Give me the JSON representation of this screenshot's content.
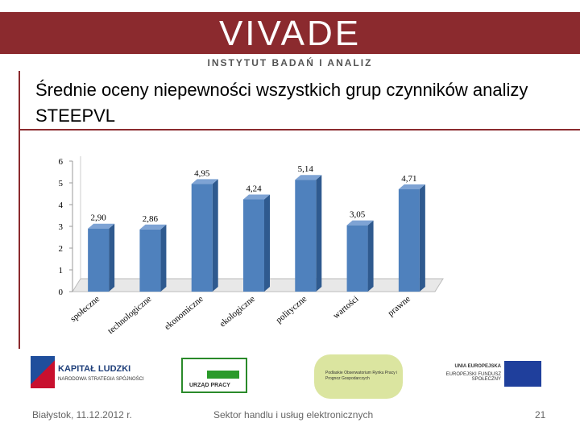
{
  "header": {
    "brand": "VIVADE",
    "tagline": "INSTYTUT BADAŃ I ANALIZ"
  },
  "chart_data": {
    "type": "bar",
    "title": "Średnie oceny niepewności wszystkich grup czynników analizy STEEPVL",
    "categories": [
      "społeczne",
      "technologiczne",
      "ekonomiczne",
      "ekologiczne",
      "polityczne",
      "wartości",
      "prawne"
    ],
    "values": [
      2.9,
      2.86,
      4.95,
      4.24,
      5.14,
      3.05,
      4.71
    ],
    "value_labels": [
      "2,90",
      "2,86",
      "4,95",
      "4,24",
      "5,14",
      "3,05",
      "4,71"
    ],
    "color": "#4f81bd",
    "ylim": [
      0,
      6
    ],
    "yticks": [
      0,
      1,
      2,
      3,
      4,
      5,
      6
    ],
    "grid": false
  },
  "logos": {
    "kapital": "KAPITAŁ LUDZKI",
    "kapital_sub": "NARODOWA STRATEGIA SPÓJNOŚCI",
    "urzad": "URZĄD PRACY",
    "obserwatorium": "Podlaskie Obserwatorium Rynku Pracy i Prognoz Gospodarczych",
    "ue": "UNIA EUROPEJSKA",
    "efs": "EUROPEJSKI FUNDUSZ SPOŁECZNY"
  },
  "footer": {
    "place_date": "Białystok, 11.12.2012 r.",
    "topic": "Sektor handlu i usług elektronicznych",
    "page": "21"
  }
}
